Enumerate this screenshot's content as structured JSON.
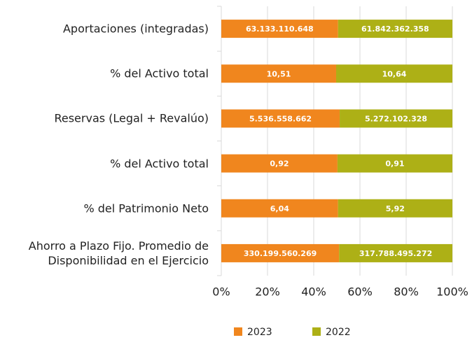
{
  "chart_data": {
    "type": "bar",
    "orientation": "horizontal",
    "stacking": "percent",
    "categories": [
      "Aportaciones (integradas)",
      "% del Activo total",
      "Reservas (Legal + Revalúo)",
      "% del Activo total",
      "% del Patrimonio Neto",
      "Ahorro a Plazo Fijo. Promedio de Disponibilidad en el Ejercicio"
    ],
    "series": [
      {
        "name": "2023",
        "color": "#f0861e",
        "values": [
          63133110648,
          10.51,
          5536558662,
          0.92,
          6.04,
          330199560269
        ],
        "value_labels": [
          "63.133.110.648",
          "10,51",
          "5.536.558.662",
          "0,92",
          "6,04",
          "330.199.560.269"
        ]
      },
      {
        "name": "2022",
        "color": "#adb016",
        "values": [
          61842362358,
          10.64,
          5272102328,
          0.91,
          5.92,
          317788495272
        ],
        "value_labels": [
          "61.842.362.358",
          "10,64",
          "5.272.102.328",
          "0,91",
          "5,92",
          "317.788.495.272"
        ]
      }
    ],
    "xlim": [
      0,
      100
    ],
    "xticks": [
      {
        "value": 0,
        "label": "0%"
      },
      {
        "value": 20,
        "label": "20%"
      },
      {
        "value": 40,
        "label": "40%"
      },
      {
        "value": 60,
        "label": "60%"
      },
      {
        "value": 80,
        "label": "80%"
      },
      {
        "value": 100,
        "label": "100%"
      }
    ],
    "grid": true,
    "legend": "bottom"
  }
}
